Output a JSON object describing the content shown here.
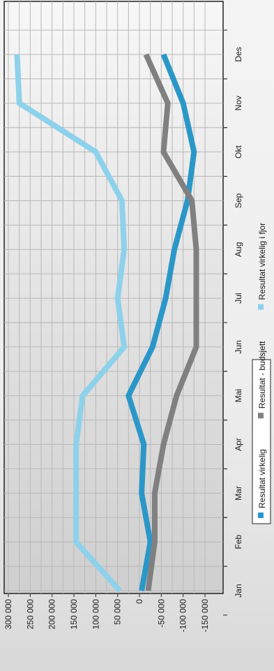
{
  "chart_data": {
    "type": "line",
    "orientation": "rotated 90° clockwise (months read top-to-bottom as Des→Jan along the right edge)",
    "title": "",
    "xlabel": "",
    "ylabel": "",
    "categories": [
      "Jan",
      "Feb",
      "Mar",
      "Apr",
      "Mai",
      "Jun",
      "Jul",
      "Aug",
      "Sep",
      "Okt",
      "Nov",
      "Des"
    ],
    "y_ticks": [
      "300 000",
      "250 000",
      "200 000",
      "150 000",
      "100 000",
      "50 000",
      "0",
      "-50 000",
      "-100 000",
      "-150 000"
    ],
    "ylim": [
      -150000,
      300000
    ],
    "grid": true,
    "legend_position": "right, rotated",
    "series": [
      {
        "name": "Resultat virkelig",
        "color": "#2b97c8",
        "values": [
          -5000,
          -25000,
          -5000,
          -10000,
          25000,
          -30000,
          -60000,
          -80000,
          -110000,
          -125000,
          -100000,
          -55000
        ]
      },
      {
        "name": "Resultat - budsjett",
        "color": "#808080",
        "values": [
          -20000,
          -35000,
          -35000,
          -55000,
          -85000,
          -130000,
          -130000,
          -130000,
          -120000,
          -55000,
          -65000,
          -15000
        ]
      },
      {
        "name": "Resultat virkelig i fjor",
        "color": "#8ed1ea",
        "values": [
          45000,
          145000,
          145000,
          145000,
          130000,
          35000,
          50000,
          35000,
          40000,
          100000,
          275000,
          280000
        ]
      }
    ]
  }
}
